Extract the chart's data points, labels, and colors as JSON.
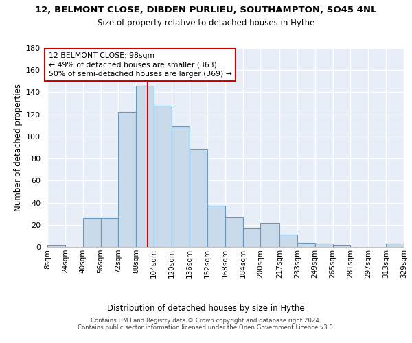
{
  "title1": "12, BELMONT CLOSE, DIBDEN PURLIEU, SOUTHAMPTON, SO45 4NL",
  "title2": "Size of property relative to detached houses in Hythe",
  "xlabel": "Distribution of detached houses by size in Hythe",
  "ylabel": "Number of detached properties",
  "bin_edges": [
    8,
    24,
    40,
    56,
    72,
    88,
    104,
    120,
    136,
    152,
    168,
    184,
    200,
    217,
    233,
    249,
    265,
    281,
    297,
    313,
    329
  ],
  "bar_heights": [
    2,
    0,
    26,
    26,
    122,
    146,
    128,
    109,
    89,
    37,
    27,
    17,
    22,
    11,
    4,
    3,
    2,
    0,
    0,
    3
  ],
  "bar_color": "#c9daea",
  "bar_edge_color": "#6699bb",
  "vline_x": 98,
  "vline_color": "#cc0000",
  "annotation_text": "12 BELMONT CLOSE: 98sqm\n← 49% of detached houses are smaller (363)\n50% of semi-detached houses are larger (369) →",
  "annotation_box_color": "white",
  "annotation_box_edge": "#cc0000",
  "ylim": [
    0,
    180
  ],
  "yticks": [
    0,
    20,
    40,
    60,
    80,
    100,
    120,
    140,
    160,
    180
  ],
  "tick_labels": [
    "8sqm",
    "24sqm",
    "40sqm",
    "56sqm",
    "72sqm",
    "88sqm",
    "104sqm",
    "120sqm",
    "136sqm",
    "152sqm",
    "168sqm",
    "184sqm",
    "200sqm",
    "217sqm",
    "233sqm",
    "249sqm",
    "265sqm",
    "281sqm",
    "297sqm",
    "313sqm",
    "329sqm"
  ],
  "footnote": "Contains HM Land Registry data © Crown copyright and database right 2024.\nContains public sector information licensed under the Open Government Licence v3.0.",
  "bg_color": "#e8eef8",
  "grid_color": "white"
}
